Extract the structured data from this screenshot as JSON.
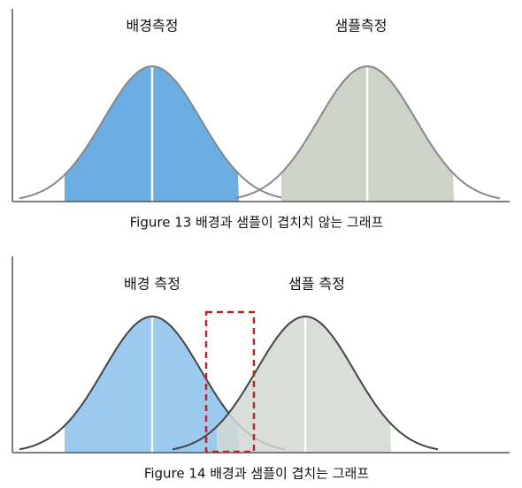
{
  "top": {
    "label_left": "배경측정",
    "label_right": "샘플측정",
    "caption": "Figure 13 배경과 샘플이 겹치치 않는 그래프"
  },
  "bottom": {
    "label_left": "배경 측정",
    "label_right": "샘플 측정",
    "caption": "Figure 14 배경과 샘플이 겹치는 그래프"
  }
}
